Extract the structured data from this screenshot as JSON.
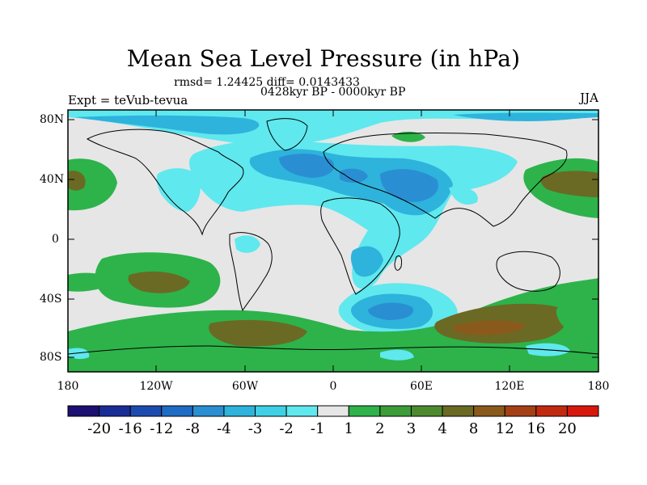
{
  "title": "Mean Sea Level Pressure (in hPa)",
  "stats_line": "rmsd= 1.24425  diff= 0.0143433",
  "period_line": "0428kyr BP - 0000kyr BP",
  "expt_label": "Expt = teVub-tevua",
  "season_label": "JJA",
  "lat_labels": [
    "80N",
    "40N",
    "0",
    "40S",
    "80S"
  ],
  "lon_labels": [
    "180",
    "120W",
    "60W",
    "0",
    "60E",
    "120E",
    "180"
  ],
  "colorbar": {
    "labels": [
      "-20",
      "-16",
      "-12",
      "-8",
      "-4",
      "-3",
      "-2",
      "-1",
      "1",
      "2",
      "3",
      "4",
      "8",
      "12",
      "16",
      "20"
    ],
    "colors": [
      "#1c1072",
      "#1a2c96",
      "#1c4bb0",
      "#1e6cc4",
      "#2a8fd2",
      "#2eb3dc",
      "#3ed0e4",
      "#5fe8ee",
      "#e6e6e6",
      "#2db34a",
      "#3b9c38",
      "#4d8a2f",
      "#6a6a24",
      "#8a5a1c",
      "#a54016",
      "#c22a10",
      "#d8180c"
    ]
  },
  "map_colors": {
    "background": "#e6e6e6",
    "neg_1": "#5fe8ee",
    "neg_2": "#2eb3dc",
    "neg_3": "#2a8fd2",
    "pos_1": "#2db34a",
    "pos_2": "#6a6a24",
    "coast": "#000000"
  }
}
